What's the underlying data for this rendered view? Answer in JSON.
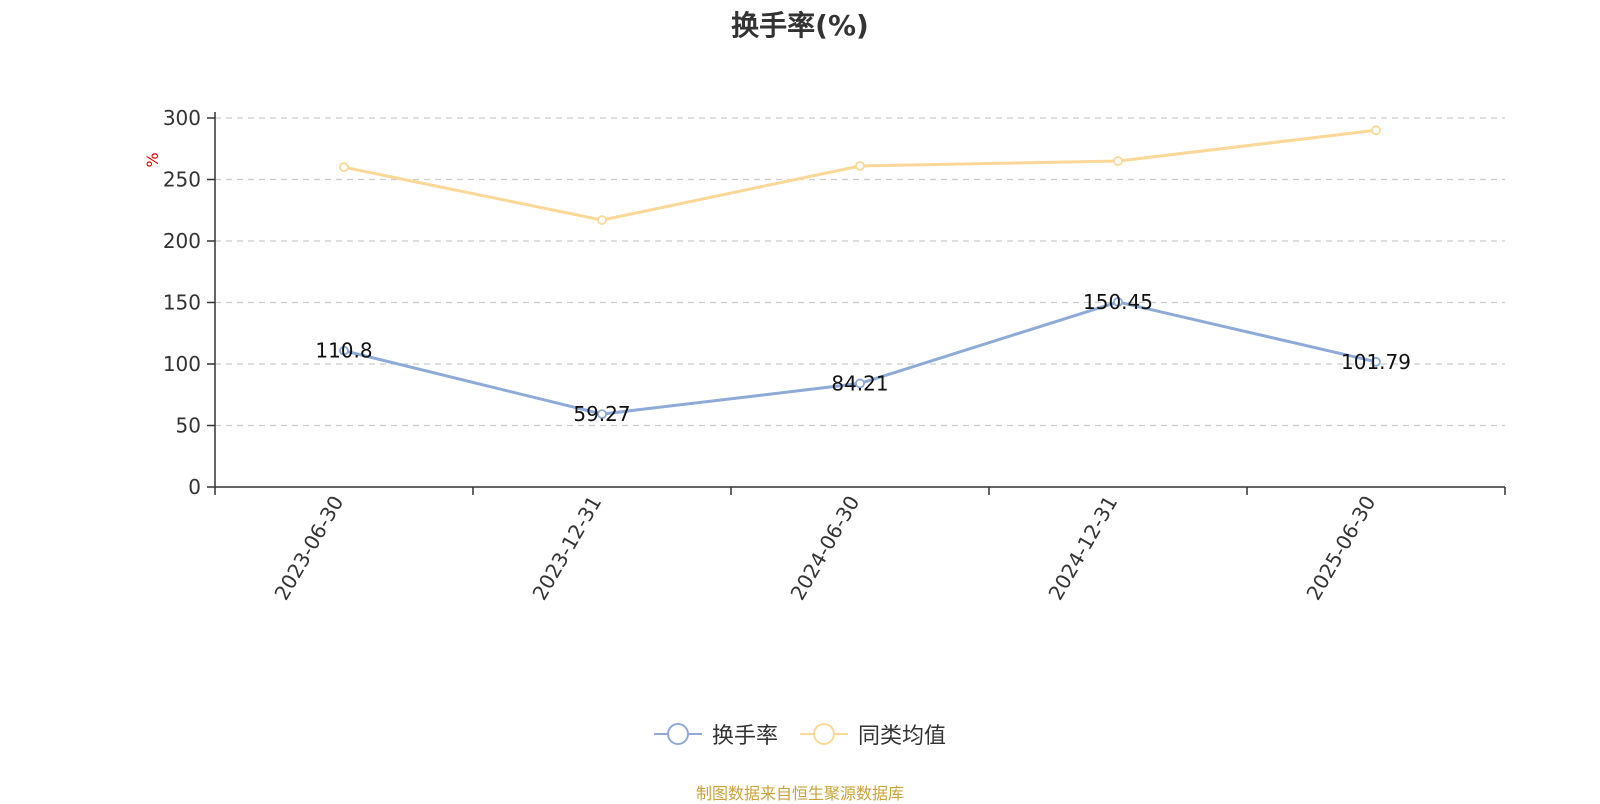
{
  "chart_data": {
    "type": "line",
    "title": "换手率(%)",
    "ylabel": "%",
    "xlabel": "",
    "categories": [
      "2023-06-30",
      "2023-12-31",
      "2024-06-30",
      "2024-12-31",
      "2025-06-30"
    ],
    "ylim": [
      0,
      300
    ],
    "yticks": [
      0,
      50,
      100,
      150,
      200,
      250,
      300
    ],
    "grid": true,
    "legend_position": "bottom",
    "series": [
      {
        "name": "换手率",
        "color": "#8eaad8",
        "values": [
          110.8,
          59.27,
          84.21,
          150.45,
          101.79
        ],
        "data_labels": [
          "110.8",
          "59.27",
          "84.21",
          "150.45",
          "101.79"
        ]
      },
      {
        "name": "同类均值",
        "color": "#fbd898",
        "values": [
          260,
          217,
          261,
          265,
          290
        ]
      }
    ]
  },
  "footer": {
    "source": "制图数据来自恒生聚源数据库"
  }
}
